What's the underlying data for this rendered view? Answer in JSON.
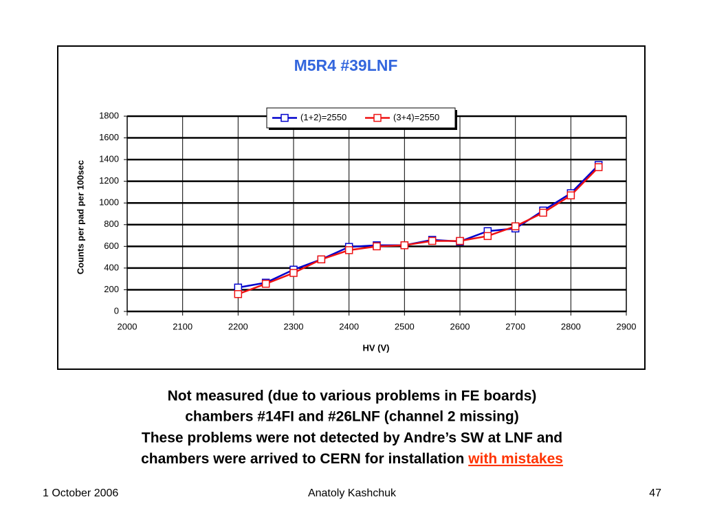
{
  "chart_data": {
    "type": "line",
    "title": "M5R4 #39LNF",
    "x_label": "HV (V)",
    "y_label": "Counts  per pad per 100sec",
    "x": [
      2200,
      2250,
      2300,
      2350,
      2400,
      2450,
      2500,
      2550,
      2600,
      2650,
      2700,
      2750,
      2800,
      2850
    ],
    "series": [
      {
        "name": "(1+2)=2550",
        "color": "#0000cc",
        "values": [
          220,
          265,
          385,
          480,
          595,
          610,
          610,
          660,
          645,
          740,
          765,
          930,
          1090,
          1350
        ]
      },
      {
        "name": "(3+4)=2550",
        "color": "#ee1111",
        "values": [
          160,
          255,
          355,
          480,
          565,
          600,
          610,
          650,
          650,
          695,
          785,
          910,
          1070,
          1330
        ]
      }
    ],
    "xlim": [
      2000,
      2900
    ],
    "xticks": [
      2000,
      2100,
      2200,
      2300,
      2400,
      2500,
      2600,
      2700,
      2800,
      2900
    ],
    "ylim": [
      0,
      1800
    ],
    "yticks": [
      0,
      200,
      400,
      600,
      800,
      1000,
      1200,
      1400,
      1600,
      1800
    ],
    "grid": true,
    "legend": "top"
  },
  "notes": {
    "lines": [
      "Not measured (due to various problems in FE boards)",
      "chambers #14FI  and #26LNF (channel 2 missing)",
      "These problems were not detected by Andre’s SW at LNF and",
      "chambers were arrived to CERN for installation "
    ],
    "highlight": "with mistakes"
  },
  "footer": {
    "date": "1 October 2006",
    "author": "Anatoly Kashchuk",
    "page": "47"
  }
}
